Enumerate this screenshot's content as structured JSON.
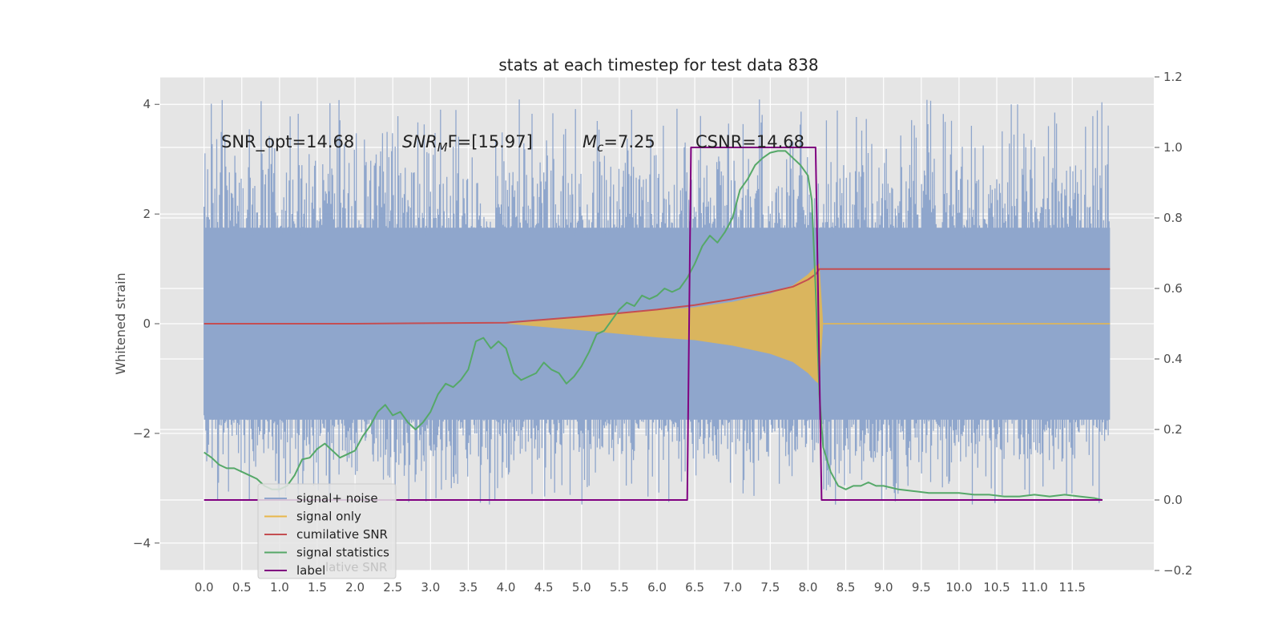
{
  "chart_data": {
    "type": "line",
    "title": "stats at each timestep for test data 838",
    "ylabel": "Whitened strain",
    "xlabel": "",
    "xlim": [
      -0.58,
      12.58
    ],
    "ylim": [
      -4.5,
      4.5
    ],
    "y2lim": [
      -0.2,
      1.2
    ],
    "x_ticks": [
      "0.0",
      "0.5",
      "1.0",
      "1.5",
      "2.0",
      "2.5",
      "3.0",
      "3.5",
      "4.0",
      "4.5",
      "5.0",
      "5.5",
      "6.0",
      "6.5",
      "7.0",
      "7.5",
      "8.0",
      "8.5",
      "9.0",
      "9.5",
      "10.0",
      "10.5",
      "11.0",
      "11.5"
    ],
    "y_ticks": [
      "4",
      "2",
      "0",
      "−2",
      "−4"
    ],
    "y2_ticks": [
      "1.2",
      "1.0",
      "0.8",
      "0.6",
      "0.4",
      "0.2",
      "0.0",
      "−0.2"
    ],
    "grid": true,
    "legend_position": "lower-left",
    "annotations": {
      "snr_opt": "SNR_opt=14.68",
      "snr_mf_main": "SNR",
      "snr_mf_sub": "M",
      "snr_mf_rest": "F=[15.97]",
      "mc_main": "M",
      "mc_sub": "c",
      "mc_rest": "=7.25",
      "csnr": "CSNR=14.68"
    },
    "legend_hidden_text": "lative SNR",
    "series": [
      {
        "name": "signal+ noise",
        "color": "#8fa6cc",
        "axis": "left",
        "description_range": [
          -3.3,
          4.1
        ]
      },
      {
        "name": "signal only",
        "color": "#e8b74a",
        "axis": "left",
        "envelope": {
          "x": [
            4.0,
            5.0,
            6.0,
            6.5,
            7.0,
            7.5,
            7.8,
            8.0,
            8.1,
            8.15,
            8.2
          ],
          "y": [
            0.0,
            0.12,
            0.25,
            0.3,
            0.4,
            0.55,
            0.7,
            0.9,
            1.05,
            1.1,
            0.0
          ]
        }
      },
      {
        "name": "cumilative SNR",
        "color": "#c44e52",
        "axis": "right",
        "x": [
          0.0,
          2.0,
          4.0,
          5.0,
          6.0,
          6.5,
          7.0,
          7.5,
          7.8,
          8.0,
          8.1,
          8.15,
          8.2,
          12.0
        ],
        "y": [
          0.5,
          0.5,
          0.503,
          0.52,
          0.54,
          0.553,
          0.57,
          0.59,
          0.605,
          0.625,
          0.64,
          0.655,
          0.655,
          0.655
        ]
      },
      {
        "name": "signal statistics",
        "color": "#55a868",
        "axis": "right",
        "x": [
          0.0,
          0.1,
          0.2,
          0.3,
          0.4,
          0.5,
          0.6,
          0.7,
          0.8,
          0.9,
          1.0,
          1.1,
          1.2,
          1.3,
          1.4,
          1.5,
          1.6,
          1.7,
          1.8,
          1.9,
          2.0,
          2.1,
          2.2,
          2.3,
          2.4,
          2.5,
          2.6,
          2.7,
          2.8,
          2.9,
          3.0,
          3.1,
          3.2,
          3.3,
          3.4,
          3.5,
          3.6,
          3.7,
          3.8,
          3.9,
          4.0,
          4.1,
          4.2,
          4.3,
          4.4,
          4.5,
          4.6,
          4.7,
          4.8,
          4.9,
          5.0,
          5.1,
          5.2,
          5.3,
          5.4,
          5.5,
          5.6,
          5.7,
          5.8,
          5.9,
          6.0,
          6.1,
          6.2,
          6.3,
          6.4,
          6.5,
          6.6,
          6.7,
          6.8,
          6.9,
          7.0,
          7.1,
          7.2,
          7.3,
          7.4,
          7.5,
          7.6,
          7.7,
          7.8,
          7.9,
          8.0,
          8.05,
          8.1,
          8.15,
          8.2,
          8.3,
          8.4,
          8.5,
          8.6,
          8.7,
          8.8,
          8.9,
          9.0,
          9.2,
          9.4,
          9.6,
          9.8,
          10.0,
          10.2,
          10.4,
          10.6,
          10.8,
          11.0,
          11.2,
          11.4,
          11.6,
          11.8,
          11.9
        ],
        "y": [
          0.135,
          0.12,
          0.1,
          0.09,
          0.09,
          0.08,
          0.07,
          0.06,
          0.04,
          0.03,
          0.03,
          0.04,
          0.07,
          0.115,
          0.12,
          0.145,
          0.16,
          0.14,
          0.12,
          0.13,
          0.14,
          0.18,
          0.21,
          0.25,
          0.27,
          0.24,
          0.25,
          0.22,
          0.2,
          0.22,
          0.25,
          0.3,
          0.33,
          0.32,
          0.34,
          0.37,
          0.45,
          0.46,
          0.43,
          0.45,
          0.43,
          0.36,
          0.34,
          0.35,
          0.36,
          0.39,
          0.37,
          0.36,
          0.33,
          0.35,
          0.38,
          0.42,
          0.47,
          0.48,
          0.51,
          0.54,
          0.56,
          0.55,
          0.58,
          0.57,
          0.58,
          0.6,
          0.59,
          0.6,
          0.63,
          0.67,
          0.72,
          0.75,
          0.73,
          0.76,
          0.8,
          0.88,
          0.91,
          0.95,
          0.97,
          0.985,
          0.99,
          0.99,
          0.97,
          0.95,
          0.92,
          0.85,
          0.6,
          0.3,
          0.15,
          0.08,
          0.04,
          0.03,
          0.04,
          0.04,
          0.05,
          0.04,
          0.04,
          0.03,
          0.025,
          0.02,
          0.02,
          0.02,
          0.015,
          0.015,
          0.01,
          0.01,
          0.015,
          0.01,
          0.015,
          0.01,
          0.005,
          0.0
        ]
      },
      {
        "name": "label",
        "color": "#800080",
        "axis": "right",
        "x": [
          0.0,
          6.4,
          6.45,
          8.1,
          8.18,
          11.9
        ],
        "y": [
          0.0,
          0.0,
          1.0,
          1.0,
          0.0,
          0.0
        ]
      }
    ]
  }
}
